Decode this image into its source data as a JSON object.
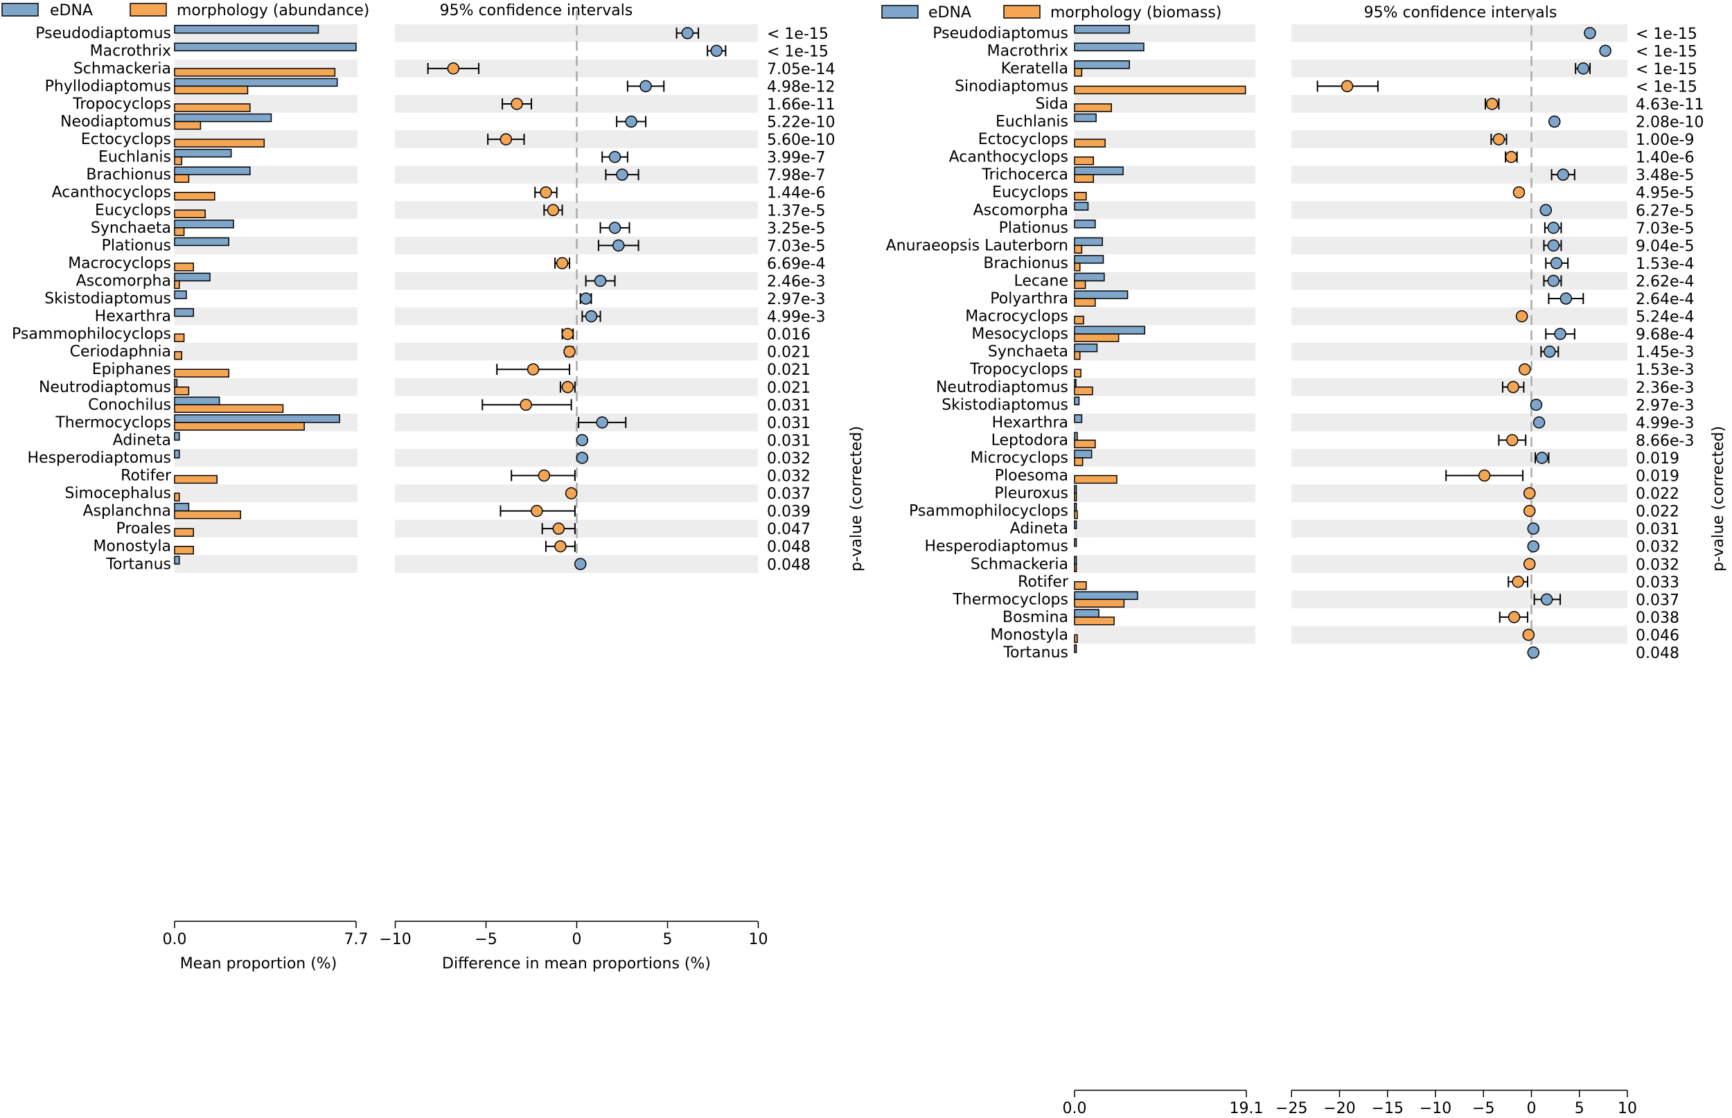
{
  "colors": {
    "edna": "#7ea6cb",
    "morph": "#f5a654",
    "band": "#ededed"
  },
  "chart_data": [
    {
      "type": "bar",
      "title": "95% confidence intervals",
      "legend": [
        "eDNA",
        "morphology (abundance)"
      ],
      "legend_position": "top-left",
      "xlabel_left": "Mean proportion (%)",
      "xlabel_right": "Difference in mean proportions (%)",
      "ylabel_right": "p-value (corrected)",
      "prop_max": 7.7,
      "prop_ticks": [
        "0.0",
        "7.7"
      ],
      "diff_range": [
        -10,
        10
      ],
      "diff_ticks": [
        "−10",
        "−5",
        "0",
        "5",
        "10"
      ],
      "categories": [
        "Pseudodiaptomus",
        "Macrothrix",
        "Schmackeria",
        "Phyllodiaptomus",
        "Tropocyclops",
        "Neodiaptomus",
        "Ectocyclops",
        "Euchlanis",
        "Brachionus",
        "Acanthocyclops",
        "Eucyclops",
        "Synchaeta",
        "Plationus",
        "Macrocyclops",
        "Ascomorpha",
        "Skistodiaptomus",
        "Hexarthra",
        "Psammophilocyclops",
        "Ceriodaphnia",
        "Epiphanes",
        "Neutrodiaptomus",
        "Conochilus",
        "Thermocyclops",
        "Adineta",
        "Hesperodiaptomus",
        "Rotifer",
        "Simocephalus",
        "Asplanchna",
        "Proales",
        "Monostyla",
        "Tortanus"
      ],
      "series": [
        {
          "name": "eDNA",
          "values": [
            6.1,
            7.7,
            0.0,
            6.9,
            0.0,
            4.1,
            0.0,
            2.4,
            3.2,
            0.0,
            0.0,
            2.5,
            2.3,
            0.0,
            1.5,
            0.5,
            0.8,
            0.0,
            0.0,
            0.0,
            0.1,
            1.9,
            7.0,
            0.2,
            0.2,
            0.0,
            0.0,
            0.6,
            0.0,
            0.0,
            0.2
          ]
        },
        {
          "name": "morphology (abundance)",
          "values": [
            0.0,
            0.0,
            6.8,
            3.1,
            3.2,
            1.1,
            3.8,
            0.3,
            0.6,
            1.7,
            1.3,
            0.4,
            0.0,
            0.8,
            0.2,
            0.0,
            0.0,
            0.4,
            0.3,
            2.3,
            0.6,
            4.6,
            5.5,
            0.0,
            0.0,
            1.8,
            0.2,
            2.8,
            0.8,
            0.8,
            0.0
          ]
        }
      ],
      "differences": [
        6.1,
        7.7,
        -6.8,
        3.8,
        -3.3,
        3.0,
        -3.9,
        2.1,
        2.5,
        -1.7,
        -1.3,
        2.1,
        2.3,
        -0.8,
        1.3,
        0.5,
        0.8,
        -0.5,
        -0.4,
        -2.4,
        -0.5,
        -2.8,
        1.4,
        0.3,
        0.3,
        -1.8,
        -0.3,
        -2.2,
        -1.0,
        -0.9,
        0.2
      ],
      "ci_low": [
        5.5,
        7.2,
        -8.2,
        2.8,
        -4.1,
        2.2,
        -4.9,
        1.4,
        1.6,
        -2.3,
        -1.8,
        1.3,
        1.2,
        -1.2,
        0.5,
        0.2,
        0.3,
        -0.8,
        -0.6,
        -4.4,
        -0.9,
        -5.2,
        0.1,
        0.3,
        0.3,
        -3.6,
        -0.3,
        -4.2,
        -1.9,
        -1.7,
        0.2
      ],
      "ci_high": [
        6.7,
        8.2,
        -5.4,
        4.8,
        -2.5,
        3.8,
        -2.9,
        2.8,
        3.4,
        -1.1,
        -0.8,
        2.9,
        3.4,
        -0.4,
        2.1,
        0.8,
        1.3,
        -0.2,
        -0.2,
        -0.4,
        -0.1,
        -0.3,
        2.7,
        0.3,
        0.3,
        -0.1,
        -0.3,
        -0.1,
        -0.1,
        -0.1,
        0.2
      ],
      "pvalues": [
        "< 1e-15",
        "< 1e-15",
        "7.05e-14",
        "4.98e-12",
        "1.66e-11",
        "5.22e-10",
        "5.60e-10",
        "3.99e-7",
        "7.98e-7",
        "1.44e-6",
        "1.37e-5",
        "3.25e-5",
        "7.03e-5",
        "6.69e-4",
        "2.46e-3",
        "2.97e-3",
        "4.99e-3",
        "0.016",
        "0.021",
        "0.021",
        "0.021",
        "0.031",
        "0.031",
        "0.031",
        "0.032",
        "0.032",
        "0.037",
        "0.039",
        "0.047",
        "0.048",
        "0.048"
      ]
    },
    {
      "type": "bar",
      "title": "95% confidence intervals",
      "legend": [
        "eDNA",
        "morphology (biomass)"
      ],
      "legend_position": "top-left",
      "xlabel_left": "Mean proportion (%)",
      "xlabel_right": "Difference in mean proportions (%)",
      "ylabel_right": "p-value (corrected)",
      "prop_max": 19.1,
      "prop_ticks": [
        "0.0",
        "19.1"
      ],
      "diff_range": [
        -25,
        10
      ],
      "diff_ticks": [
        "−25",
        "−20",
        "−15",
        "−10",
        "−5",
        "0",
        "5",
        "10"
      ],
      "categories": [
        "Pseudodiaptomus",
        "Macrothrix",
        "Keratella",
        "Sinodiaptomus",
        "Sida",
        "Euchlanis",
        "Ectocyclops",
        "Acanthocyclops",
        "Trichocerca",
        "Eucyclops",
        "Ascomorpha",
        "Plationus",
        "Anuraeopsis Lauterborn",
        "Brachionus",
        "Lecane",
        "Polyarthra",
        "Macrocyclops",
        "Mesocyclops",
        "Synchaeta",
        "Tropocyclops",
        "Neutrodiaptomus",
        "Skistodiaptomus",
        "Hexarthra",
        "Leptodora",
        "Microcyclops",
        "Ploesoma",
        "Pleuroxus",
        "Psammophilocyclops",
        "Adineta",
        "Hesperodiaptomus",
        "Schmackeria",
        "Rotifer",
        "Thermocyclops",
        "Bosmina",
        "Monostyla",
        "Tortanus"
      ],
      "series": [
        {
          "name": "eDNA",
          "values": [
            6.1,
            7.7,
            6.1,
            0.0,
            0.0,
            2.4,
            0.0,
            0.0,
            5.4,
            0.0,
            1.5,
            2.3,
            3.1,
            3.2,
            3.3,
            5.9,
            0.0,
            7.8,
            2.5,
            0.0,
            0.1,
            0.5,
            0.8,
            0.3,
            1.9,
            0.0,
            0.2,
            0.2,
            0.2,
            0.2,
            0.2,
            0.0,
            7.0,
            2.7,
            0.0,
            0.2
          ]
        },
        {
          "name": "morphology (biomass)",
          "values": [
            0.0,
            0.0,
            0.8,
            19.0,
            4.1,
            0.0,
            3.4,
            2.1,
            2.1,
            1.3,
            0.0,
            0.0,
            0.8,
            0.6,
            1.2,
            2.3,
            1.0,
            4.9,
            0.6,
            0.7,
            2.0,
            0.0,
            0.0,
            2.3,
            0.9,
            4.7,
            0.2,
            0.3,
            0.0,
            0.0,
            0.2,
            1.3,
            5.5,
            4.4,
            0.3,
            0.0
          ]
        }
      ],
      "differences": [
        6.1,
        7.7,
        5.4,
        -19.2,
        -4.1,
        2.4,
        -3.4,
        -2.1,
        3.3,
        -1.3,
        1.5,
        2.3,
        2.3,
        2.6,
        2.3,
        3.6,
        -1.0,
        3.0,
        1.9,
        -0.7,
        -1.9,
        0.5,
        0.8,
        -2.0,
        1.1,
        -4.9,
        -0.2,
        -0.2,
        0.2,
        0.2,
        -0.2,
        -1.4,
        1.6,
        -1.8,
        -0.3,
        0.2
      ],
      "ci_low": [
        6.1,
        7.7,
        4.6,
        -22.3,
        -4.8,
        2.4,
        -4.2,
        -2.7,
        2.1,
        -1.3,
        1.5,
        1.4,
        1.3,
        1.5,
        1.3,
        1.8,
        -1.0,
        1.5,
        1.0,
        -0.7,
        -3.0,
        0.5,
        0.8,
        -3.4,
        0.4,
        -8.9,
        -0.2,
        -0.2,
        0.2,
        0.2,
        -0.2,
        -2.4,
        0.3,
        -3.3,
        -0.3,
        0.2
      ],
      "ci_high": [
        6.1,
        7.7,
        6.1,
        -16.0,
        -3.4,
        2.4,
        -2.6,
        -1.5,
        4.5,
        -1.3,
        1.5,
        3.1,
        3.1,
        3.8,
        3.1,
        5.4,
        -1.0,
        4.5,
        2.8,
        -0.7,
        -0.8,
        0.5,
        0.8,
        -0.6,
        1.8,
        -0.9,
        -0.2,
        -0.2,
        0.2,
        0.2,
        -0.2,
        -0.4,
        3.0,
        -0.4,
        -0.3,
        0.2
      ],
      "pvalues": [
        "< 1e-15",
        "< 1e-15",
        "< 1e-15",
        "< 1e-15",
        "4.63e-11",
        "2.08e-10",
        "1.00e-9",
        "1.40e-6",
        "3.48e-5",
        "4.95e-5",
        "6.27e-5",
        "7.03e-5",
        "9.04e-5",
        "1.53e-4",
        "2.62e-4",
        "2.64e-4",
        "5.24e-4",
        "9.68e-4",
        "1.45e-3",
        "1.53e-3",
        "2.36e-3",
        "2.97e-3",
        "4.99e-3",
        "8.66e-3",
        "0.019",
        "0.019",
        "0.022",
        "0.022",
        "0.031",
        "0.032",
        "0.032",
        "0.033",
        "0.037",
        "0.038",
        "0.046",
        "0.048"
      ]
    }
  ]
}
